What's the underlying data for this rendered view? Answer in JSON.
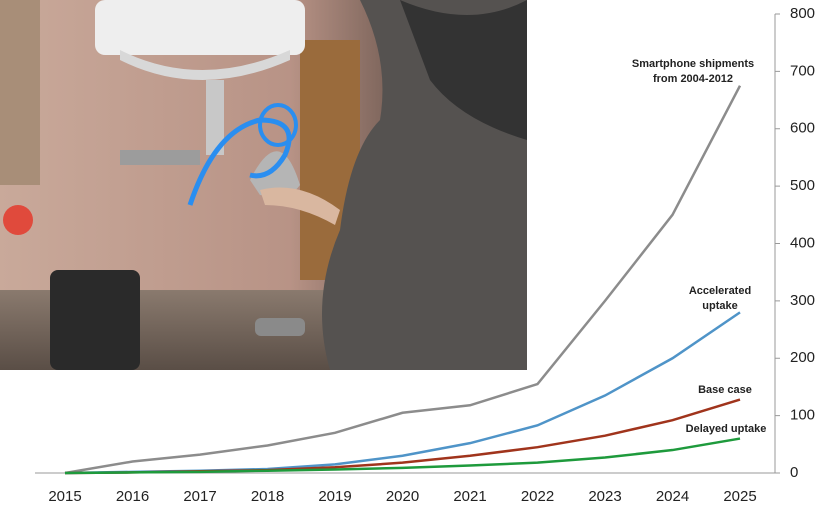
{
  "chart_data": {
    "type": "line",
    "categories": [
      "2015",
      "2016",
      "2017",
      "2018",
      "2019",
      "2020",
      "2021",
      "2022",
      "2023",
      "2024",
      "2025"
    ],
    "series": [
      {
        "name": "Smartphone shipments from 2004-2012",
        "color": "#8c8c8c",
        "values": [
          0,
          20,
          32,
          48,
          70,
          105,
          118,
          155,
          300,
          450,
          675
        ]
      },
      {
        "name": "Accelerated uptake",
        "color": "#4f94c8",
        "values": [
          0,
          2,
          4,
          7,
          15,
          30,
          52,
          83,
          135,
          200,
          280
        ]
      },
      {
        "name": "Base case",
        "color": "#a0341c",
        "values": [
          0,
          1,
          3,
          5,
          10,
          18,
          30,
          45,
          65,
          92,
          128
        ]
      },
      {
        "name": "Delayed uptake",
        "color": "#1e9a3c",
        "values": [
          0,
          1,
          2,
          4,
          6,
          9,
          13,
          18,
          27,
          40,
          60
        ]
      }
    ],
    "ylim": [
      0,
      800
    ],
    "yticks": [
      0,
      100,
      200,
      300,
      400,
      500,
      600,
      700,
      800
    ],
    "y_axis_side": "right"
  }
}
